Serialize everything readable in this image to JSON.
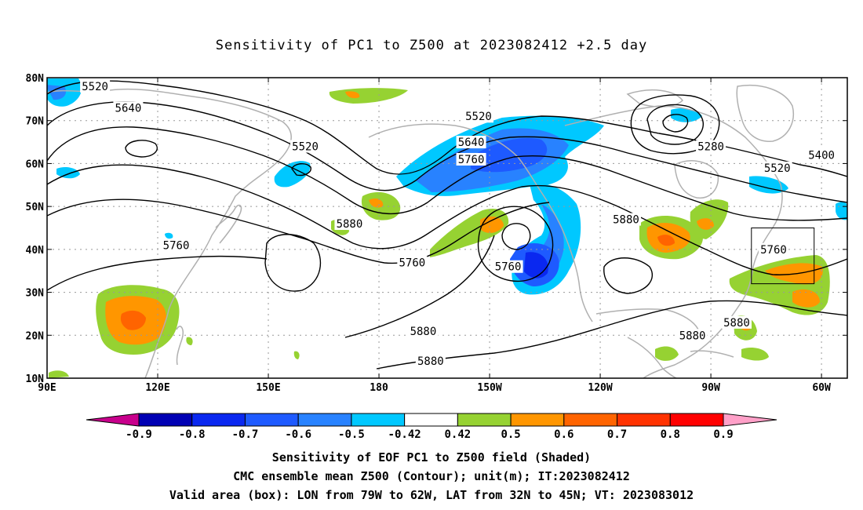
{
  "title": "Sensitivity of PC1 to Z500 at 2023082412 +2.5 day",
  "map": {
    "lat_labels": [
      "80N",
      "70N",
      "60N",
      "50N",
      "40N",
      "30N",
      "20N",
      "10N"
    ],
    "lon_labels": [
      "90E",
      "120E",
      "150E",
      "180",
      "150W",
      "120W",
      "90W",
      "60W"
    ],
    "contour_labels": [
      {
        "text": "5520",
        "lon": 103,
        "lat": 78
      },
      {
        "text": "5640",
        "lon": 112,
        "lat": 73
      },
      {
        "text": "5520",
        "lon": 160,
        "lat": 64
      },
      {
        "text": "5760",
        "lon": 125,
        "lat": 41
      },
      {
        "text": "5880",
        "lon": 172,
        "lat": 46
      },
      {
        "text": "5760",
        "lon": 189,
        "lat": 37
      },
      {
        "text": "5520",
        "lon": -153,
        "lat": 71
      },
      {
        "text": "5640",
        "lon": -155,
        "lat": 65
      },
      {
        "text": "5760",
        "lon": -155,
        "lat": 61
      },
      {
        "text": "5760",
        "lon": -145,
        "lat": 36
      },
      {
        "text": "5880",
        "lon": -113,
        "lat": 47
      },
      {
        "text": "5280",
        "lon": -90,
        "lat": 64
      },
      {
        "text": "5400",
        "lon": -60,
        "lat": 62
      },
      {
        "text": "5520",
        "lon": -72,
        "lat": 59
      },
      {
        "text": "5760",
        "lon": -73,
        "lat": 40
      },
      {
        "text": "5880",
        "lon": -168,
        "lat": 21
      },
      {
        "text": "5880",
        "lon": -166,
        "lat": 14
      },
      {
        "text": "5880",
        "lon": -95,
        "lat": 20
      },
      {
        "text": "5880",
        "lon": -83,
        "lat": 23
      }
    ],
    "box": {
      "lon_from": -79,
      "lon_to": -62,
      "lat_from": 32,
      "lat_to": 45
    }
  },
  "colorbar": {
    "labels": [
      "-0.9",
      "-0.8",
      "-0.7",
      "-0.6",
      "-0.5",
      "-0.42",
      "0.42",
      "0.5",
      "0.6",
      "0.7",
      "0.8",
      "0.9"
    ],
    "colors": [
      "#0000b4",
      "#0a28f0",
      "#1e5aff",
      "#2882ff",
      "#00c8ff",
      "#ffffff",
      "#96d232",
      "#ff9600",
      "#ff6400",
      "#ff3200",
      "#ff0000"
    ],
    "left_arrow_color": "#c8008c",
    "right_arrow_color": "#ffa0c8"
  },
  "footer": {
    "line1": "Sensitivity of EOF PC1 to Z500 field (Shaded)",
    "line2": "CMC ensemble mean Z500 (Contour); unit(m); IT:2023082412",
    "line3": "Valid area (box): LON from 79W to 62W, LAT from 32N to 45N; VT: 2023083012"
  }
}
